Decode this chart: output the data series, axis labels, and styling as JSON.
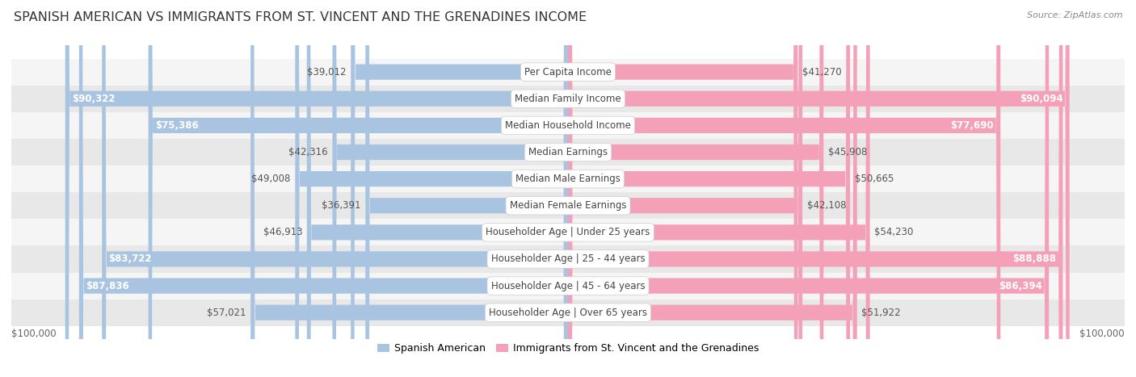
{
  "title": "SPANISH AMERICAN VS IMMIGRANTS FROM ST. VINCENT AND THE GRENADINES INCOME",
  "source": "Source: ZipAtlas.com",
  "categories": [
    "Per Capita Income",
    "Median Family Income",
    "Median Household Income",
    "Median Earnings",
    "Median Male Earnings",
    "Median Female Earnings",
    "Householder Age | Under 25 years",
    "Householder Age | 25 - 44 years",
    "Householder Age | 45 - 64 years",
    "Householder Age | Over 65 years"
  ],
  "left_values": [
    39012,
    90322,
    75386,
    42316,
    49008,
    36391,
    46913,
    83722,
    87836,
    57021
  ],
  "right_values": [
    41270,
    90094,
    77690,
    45908,
    50665,
    42108,
    54230,
    88888,
    86394,
    51922
  ],
  "left_labels": [
    "$39,012",
    "$90,322",
    "$75,386",
    "$42,316",
    "$49,008",
    "$36,391",
    "$46,913",
    "$83,722",
    "$87,836",
    "$57,021"
  ],
  "right_labels": [
    "$41,270",
    "$90,094",
    "$77,690",
    "$45,908",
    "$50,665",
    "$42,108",
    "$54,230",
    "$88,888",
    "$86,394",
    "$51,922"
  ],
  "max_value": 100000,
  "left_color": "#a8c4e0",
  "right_color": "#f4a0b8",
  "left_legend": "Spanish American",
  "right_legend": "Immigrants from St. Vincent and the Grenadines",
  "bar_height": 0.58,
  "bg_color": "#f0f0f0",
  "row_bg_even": "#f5f5f5",
  "row_bg_odd": "#e8e8e8",
  "label_fontsize": 8.5,
  "category_fontsize": 8.5,
  "title_fontsize": 11.5,
  "inside_threshold": 60000
}
